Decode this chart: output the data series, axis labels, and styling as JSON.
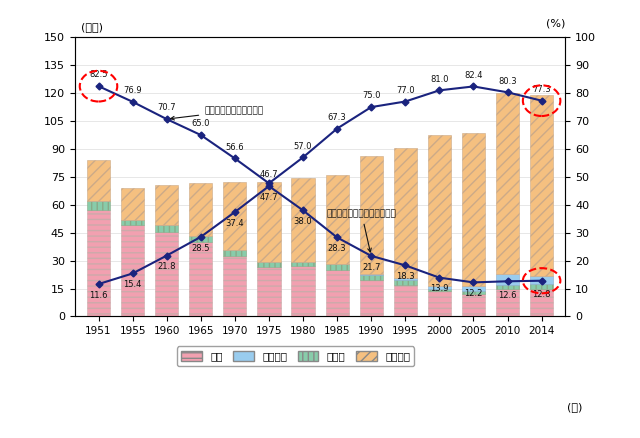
{
  "years": [
    1951,
    1955,
    1960,
    1965,
    1970,
    1975,
    1980,
    1985,
    1990,
    1995,
    2000,
    2005,
    2010,
    2014
  ],
  "bar_jitaku": [
    57.0,
    49.0,
    45.5,
    40.0,
    32.5,
    26.5,
    27.0,
    25.0,
    19.5,
    17.0,
    13.5,
    12.0,
    15.0,
    15.0
  ],
  "bar_sonota": [
    5.0,
    3.0,
    3.5,
    3.5,
    3.0,
    2.5,
    2.5,
    3.0,
    3.0,
    2.5,
    1.5,
    1.5,
    2.0,
    2.5
  ],
  "bar_kaigo": [
    0.0,
    0.0,
    0.0,
    0.0,
    0.0,
    0.0,
    0.0,
    0.0,
    0.5,
    1.0,
    1.5,
    3.0,
    6.0,
    4.5
  ],
  "bar_iryou": [
    22.0,
    17.0,
    21.5,
    28.0,
    36.5,
    43.0,
    45.0,
    48.0,
    63.0,
    70.0,
    81.0,
    82.0,
    97.0,
    97.0
  ],
  "line1_y": [
    82.5,
    76.9,
    70.7,
    65.0,
    56.6,
    47.7,
    57.0,
    67.3,
    75.0,
    77.0,
    81.0,
    82.4,
    80.3,
    77.3
  ],
  "line2_y": [
    11.6,
    15.4,
    21.8,
    28.5,
    37.4,
    46.7,
    38.0,
    28.3,
    21.7,
    18.3,
    13.9,
    12.2,
    12.6,
    12.8
  ],
  "labels1": [
    "82.5",
    "76.9",
    "70.7",
    "65.0",
    "56.6",
    "47.7",
    "57.0",
    "67.3",
    "75.0",
    "77.0",
    "81.0",
    "82.4",
    "80.3",
    "77.3"
  ],
  "labels2": [
    "11.6",
    "15.4",
    "21.8",
    "28.5",
    "37.4",
    "46.7",
    "38.0",
    "28.3",
    "21.7",
    "18.3",
    "13.9",
    "12.2",
    "12.6",
    "12.8"
  ],
  "color_jitaku": "#f2a0b0",
  "color_kaigo": "#99ccee",
  "color_sonota": "#88ccaa",
  "color_iryou": "#f5c080",
  "line_color": "#1a237e",
  "ylim_left": [
    0,
    150
  ],
  "ylim_right": [
    0,
    100
  ],
  "yticks_left": [
    0,
    15,
    30,
    45,
    60,
    75,
    90,
    105,
    120,
    135,
    150
  ],
  "yticks_right": [
    0,
    10,
    20,
    30,
    40,
    50,
    60,
    70,
    80,
    90,
    100
  ],
  "ylabel_left": "(万人)",
  "ylabel_right": "(%)",
  "xlabel": "(年)",
  "legend_labels": [
    "自宅",
    "介護施設",
    "その他",
    "医療機関"
  ],
  "ann_jitaku": "自宅で死亡する者の割合",
  "ann_iryou": "医療機関で死亡する者の割合"
}
